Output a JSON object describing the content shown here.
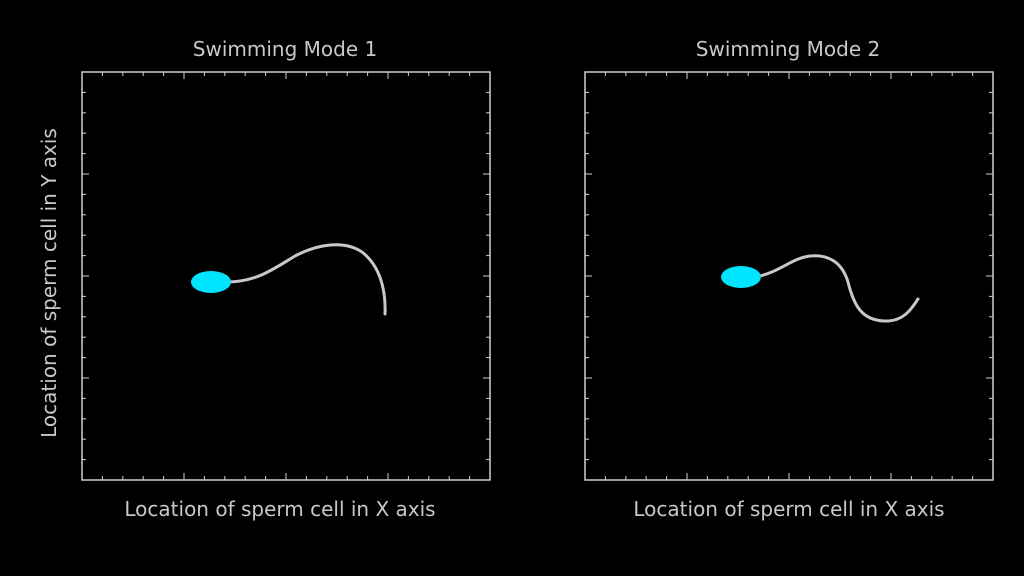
{
  "colors": {
    "background": "#000000",
    "frame": "#cfcfcf",
    "text": "#c8c8c8",
    "head": "#00e5ff",
    "tail": "#c8c8c8"
  },
  "panels": [
    {
      "title": "Swimming Mode 1",
      "xlabel": "Location of sperm cell in X axis",
      "ylabel": "Location of sperm cell in Y axis"
    },
    {
      "title": "Swimming Mode 2",
      "xlabel": "Location of sperm cell in X axis",
      "ylabel": ""
    }
  ]
}
